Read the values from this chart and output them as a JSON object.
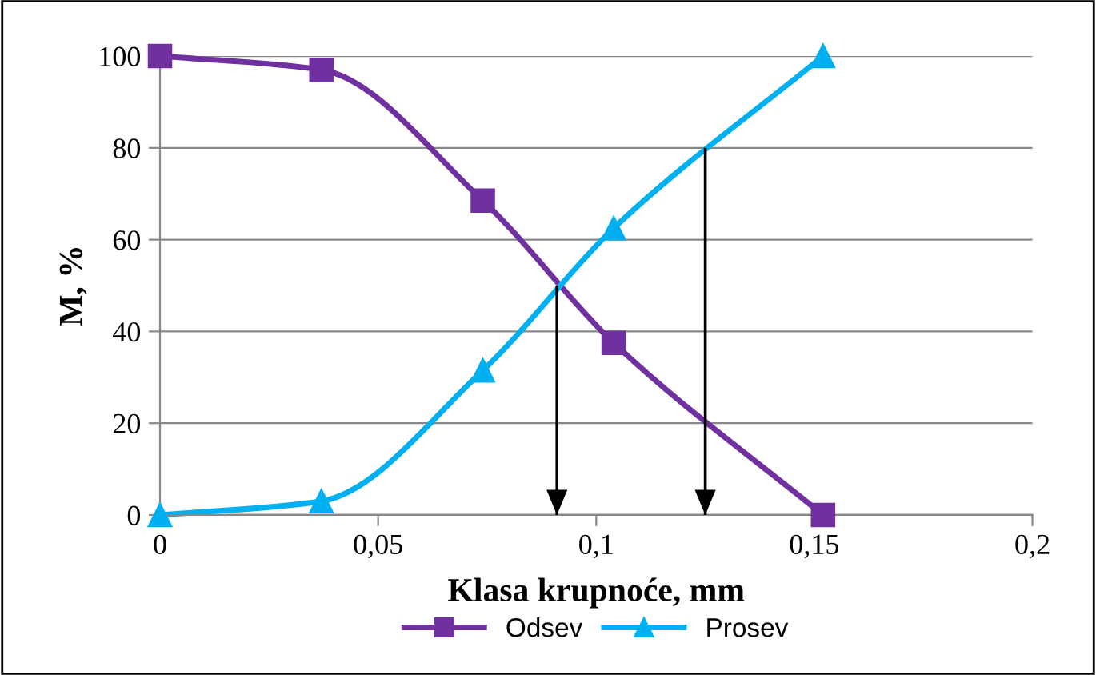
{
  "chart_data": {
    "type": "line",
    "xlabel": "Klasa krupnoće, mm",
    "ylabel": "M, %",
    "xlim": [
      0,
      0.2
    ],
    "xticks": [
      {
        "value": 0,
        "label": "0"
      },
      {
        "value": 0.05,
        "label": "0,05"
      },
      {
        "value": 0.1,
        "label": "0,1"
      },
      {
        "value": 0.15,
        "label": "0,15"
      },
      {
        "value": 0.2,
        "label": "0,2"
      }
    ],
    "ylim": [
      0,
      100
    ],
    "yticks": [
      0,
      20,
      40,
      60,
      80,
      100
    ],
    "grid": "y",
    "legend": "bottom",
    "line_style": "solid",
    "series": [
      {
        "name": "Odsev",
        "color": "#7030a0",
        "marker": "square",
        "x": [
          0,
          0.037,
          0.074,
          0.104,
          0.152
        ],
        "values": [
          100,
          97,
          68.5,
          37.5,
          0
        ]
      },
      {
        "name": "Prosev",
        "color": "#00b0f0",
        "marker": "triangle",
        "x": [
          0,
          0.037,
          0.074,
          0.104,
          0.152
        ],
        "values": [
          0,
          3,
          31.5,
          62.5,
          100
        ]
      },
      {
        "type": "line",
        "marker": "none",
        "color": "#000000",
        "x": [
          0.091,
          0.091
        ],
        "values": [
          50,
          0
        ]
      },
      {
        "type": "line",
        "marker": "none",
        "color": "#000000",
        "x": [
          0.125,
          0.125
        ],
        "values": [
          80,
          0
        ]
      }
    ]
  }
}
